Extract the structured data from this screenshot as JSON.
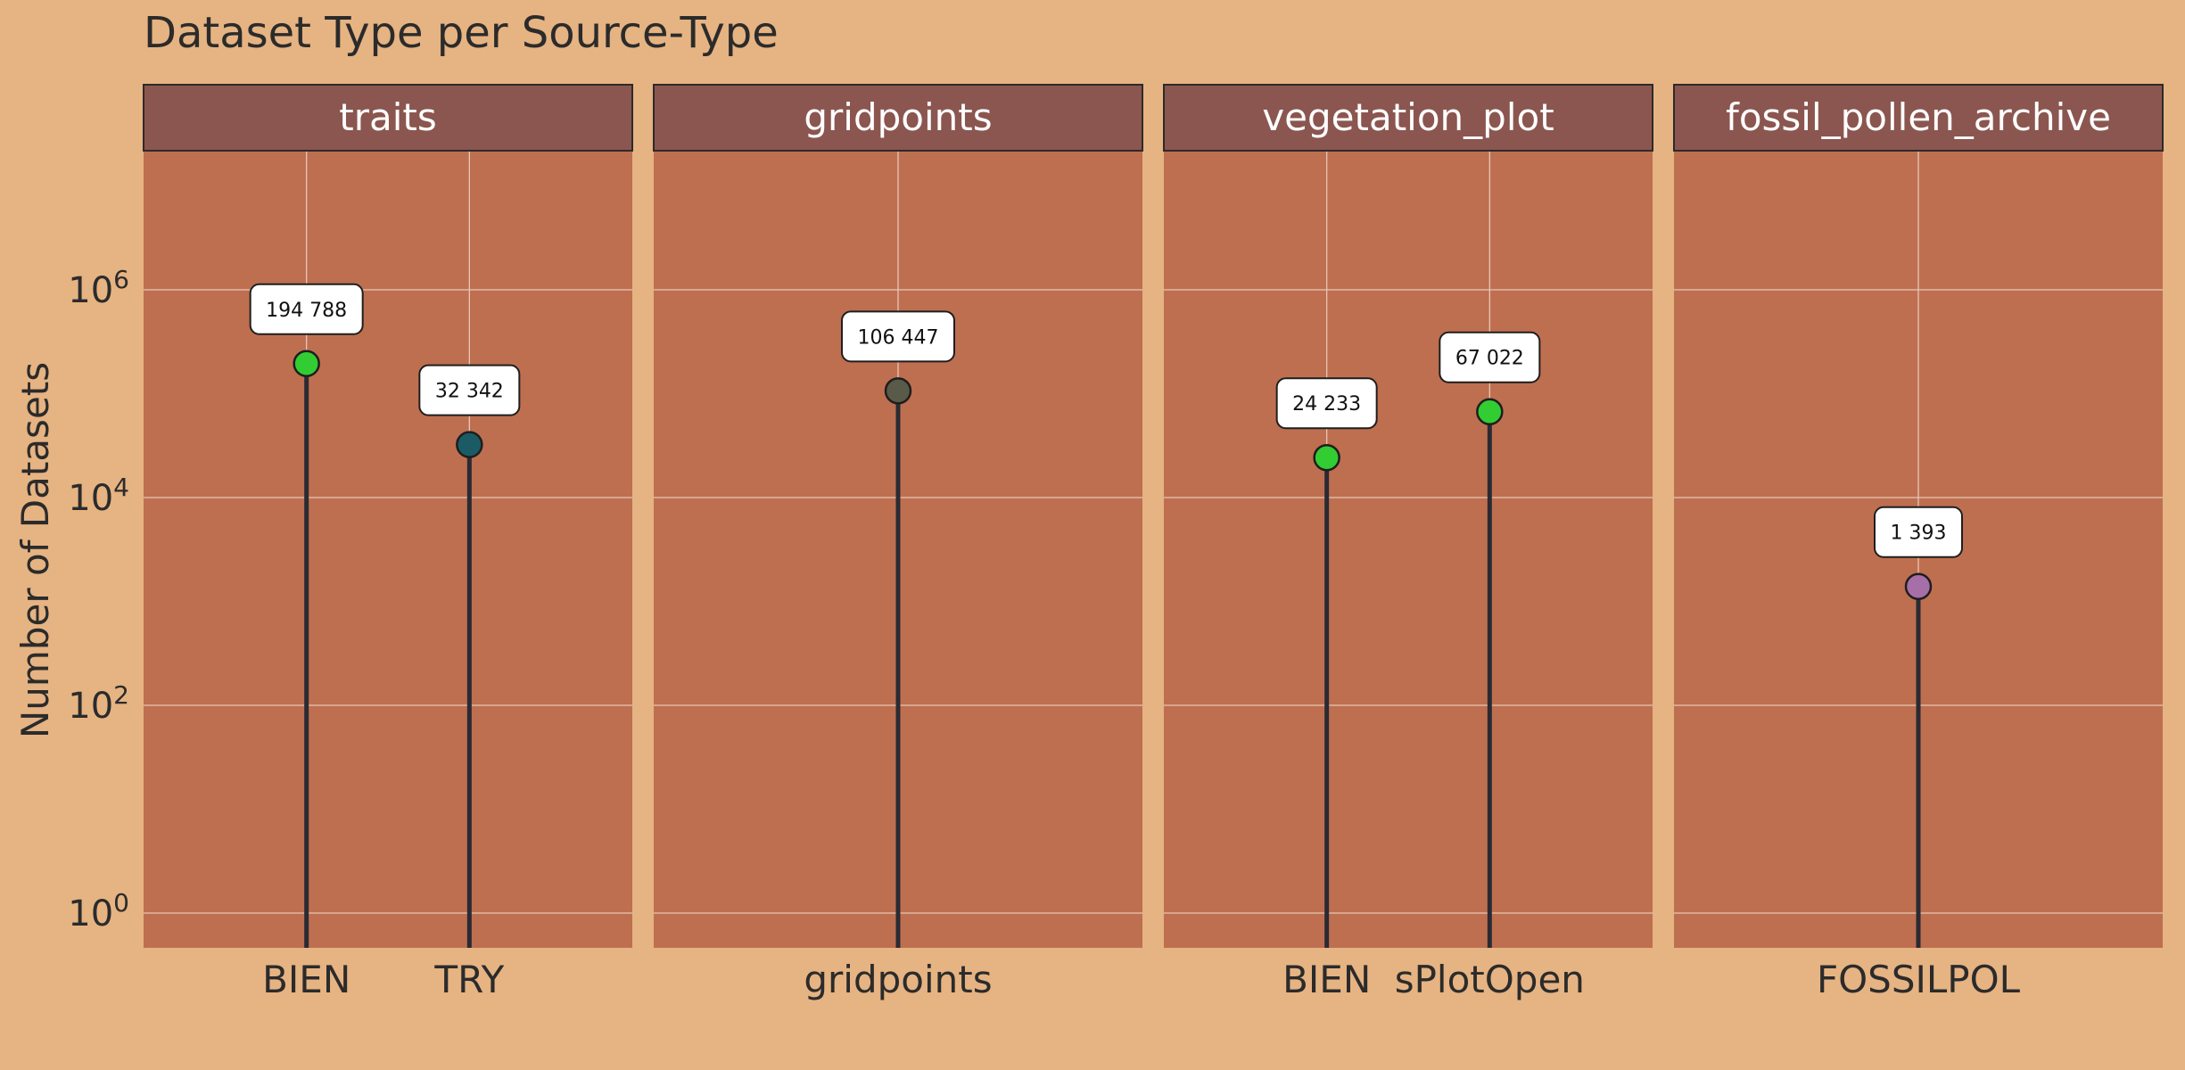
{
  "chart_data": {
    "type": "lollipop",
    "title": "Dataset Type per Source-Type",
    "ylabel": "Number of Datasets",
    "yscale": "log10",
    "ylim": [
      0.2,
      60000000
    ],
    "y_ticks": [
      {
        "value": 1,
        "exp": "0"
      },
      {
        "value": 100,
        "exp": "2"
      },
      {
        "value": 10000,
        "exp": "4"
      },
      {
        "value": 1000000,
        "exp": "6"
      }
    ],
    "y_tick_base": "10",
    "grid": true,
    "colors": {
      "page_background": "#E6B382",
      "panel_background": "#BE6F50",
      "strip_background": "#8B5650",
      "strip_text": "#FFFFFF",
      "gridline": "#E8C7B3",
      "stem": "#2A2A33",
      "label_box": "#FFFFFF",
      "text": "#2B2B2B"
    },
    "facets": [
      {
        "name": "traits",
        "items": [
          {
            "x": "BIEN",
            "value": 194788,
            "label": "194 788",
            "color": "#32CD32"
          },
          {
            "x": "TRY",
            "value": 32342,
            "label": "32 342",
            "color": "#1B5B66"
          }
        ]
      },
      {
        "name": "gridpoints",
        "items": [
          {
            "x": "gridpoints",
            "value": 106447,
            "label": "106 447",
            "color": "#5A5A48"
          }
        ]
      },
      {
        "name": "vegetation_plot",
        "items": [
          {
            "x": "BIEN",
            "value": 24233,
            "label": "24 233",
            "color": "#32CD32"
          },
          {
            "x": "sPlotOpen",
            "value": 67022,
            "label": "67 022",
            "color": "#32CD32"
          }
        ]
      },
      {
        "name": "fossil_pollen_archive",
        "items": [
          {
            "x": "FOSSILPOL",
            "value": 1393,
            "label": "1 393",
            "color": "#A66FA8"
          }
        ]
      }
    ]
  }
}
